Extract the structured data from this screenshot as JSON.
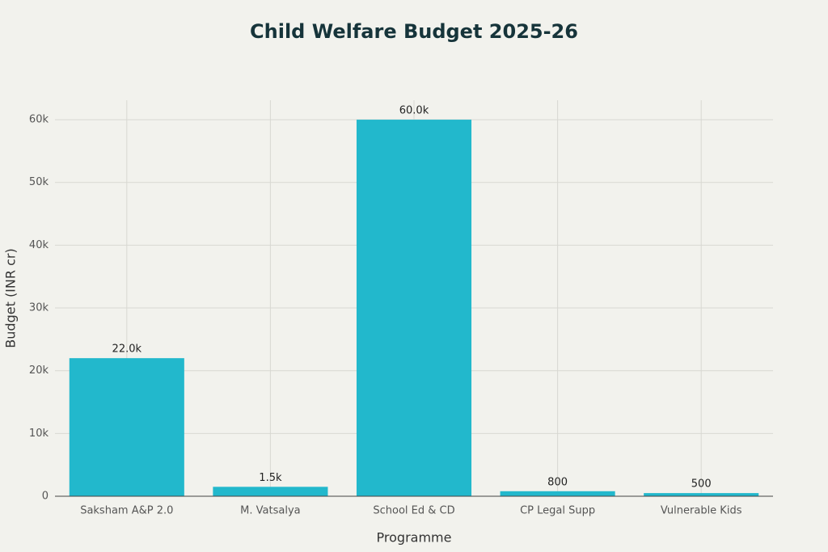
{
  "chart_data": {
    "type": "bar",
    "title": "Child Welfare Budget 2025-26",
    "x_label": "Programme",
    "y_label": "Budget (INR cr)",
    "categories": [
      "Saksham A&P 2.0",
      "M. Vatsalya",
      "School Ed & CD",
      "CP Legal Supp",
      "Vulnerable Kids"
    ],
    "values": [
      22000,
      1500,
      60000,
      800,
      500
    ],
    "value_labels": [
      "22.0k",
      "1.5k",
      "60.0k",
      "800",
      "500"
    ],
    "color": "#22b8cc",
    "ylim": [
      0,
      63100
    ],
    "yticks": [
      0,
      {
        "value": 10000,
        "label": "10k"
      },
      {
        "value": 20000,
        "label": "20k"
      },
      {
        "value": 30000,
        "label": "30k"
      },
      {
        "value": 40000,
        "label": "40k"
      },
      {
        "value": 50000,
        "label": "50k"
      },
      {
        "value": 60000,
        "label": "60k"
      }
    ],
    "grid": true
  }
}
